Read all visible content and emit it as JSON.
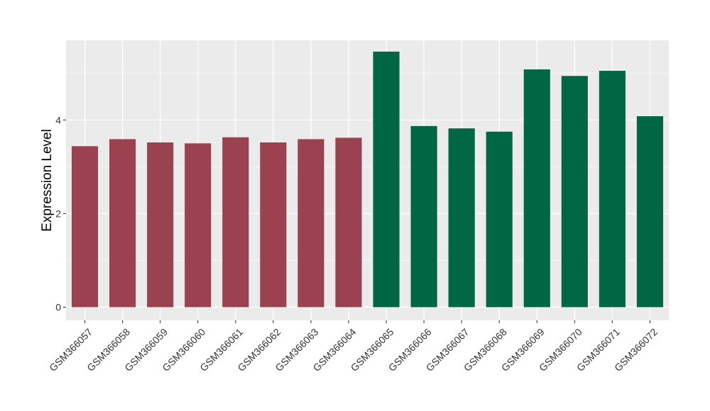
{
  "chart_data": {
    "type": "bar",
    "title": "",
    "xlabel": "",
    "ylabel": "Expression Level",
    "ylim": [
      -0.28,
      5.7
    ],
    "yticks": [
      0,
      2,
      4
    ],
    "grid": true,
    "legend": "none",
    "categories": [
      "GSM366057",
      "GSM366058",
      "GSM366059",
      "GSM366060",
      "GSM366061",
      "GSM366062",
      "GSM366063",
      "GSM366064",
      "GSM366065",
      "GSM366066",
      "GSM366067",
      "GSM366068",
      "GSM366069",
      "GSM366070",
      "GSM366071",
      "GSM366072"
    ],
    "values": [
      3.44,
      3.59,
      3.52,
      3.5,
      3.63,
      3.52,
      3.59,
      3.62,
      5.46,
      3.87,
      3.82,
      3.75,
      5.08,
      4.94,
      5.05,
      4.08
    ],
    "groups": [
      0,
      0,
      0,
      0,
      0,
      0,
      0,
      0,
      1,
      1,
      1,
      1,
      1,
      1,
      1,
      1
    ],
    "group_colors": [
      "#9b4250",
      "#006644"
    ],
    "panel_color": "#ebebeb",
    "grid_color": "#ffffff"
  }
}
